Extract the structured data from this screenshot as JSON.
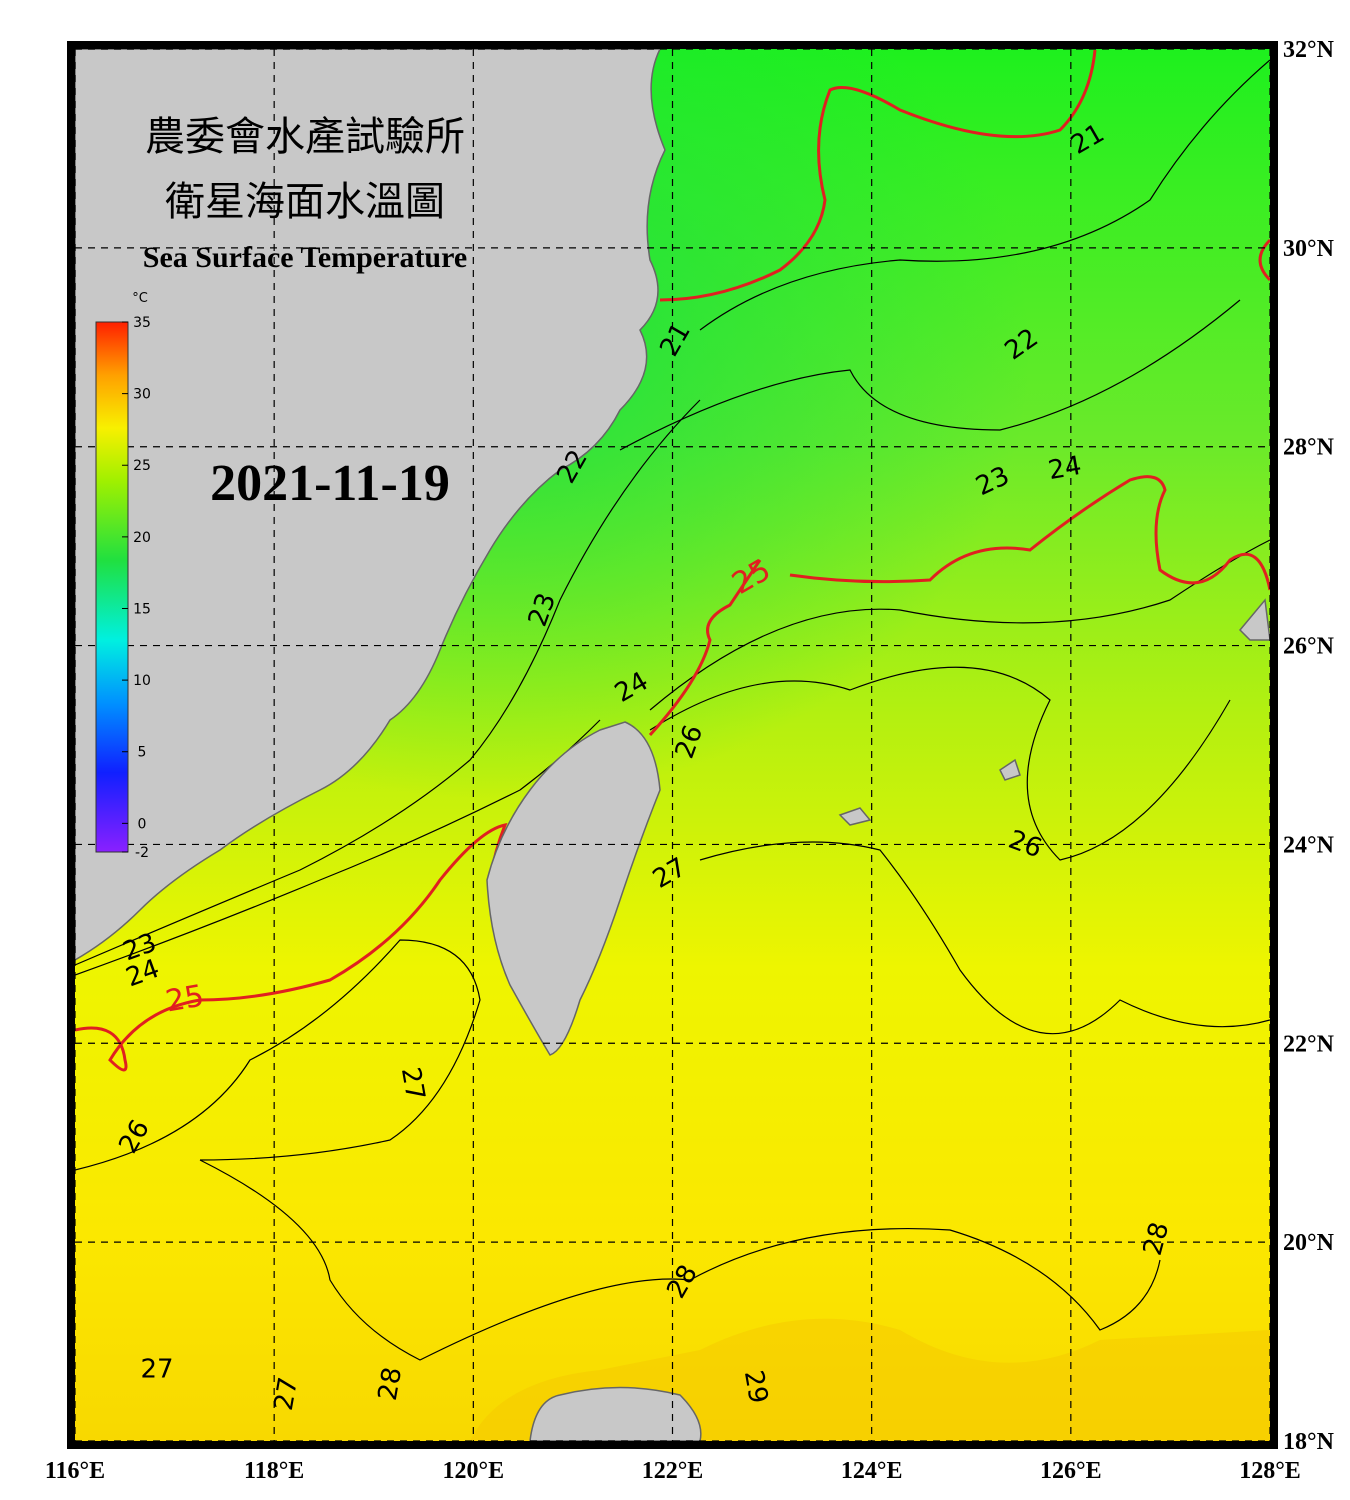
{
  "header": {
    "title_zh_1": "農委會水產試驗所",
    "title_zh_2": "衛星海面水溫圖",
    "title_en": "Sea Surface Temperature",
    "date": "2021-11-19"
  },
  "colorbar": {
    "unit": "°C",
    "lim": [
      -2,
      35
    ],
    "ticks": [
      -2,
      0,
      5,
      10,
      15,
      20,
      25,
      30,
      35
    ]
  },
  "map": {
    "xlim": [
      116,
      128
    ],
    "ylim": [
      18,
      32
    ],
    "xticks": [
      {
        "value": 116,
        "label": "116°E"
      },
      {
        "value": 118,
        "label": "118°E"
      },
      {
        "value": 120,
        "label": "120°E"
      },
      {
        "value": 122,
        "label": "122°E"
      },
      {
        "value": 124,
        "label": "124°E"
      },
      {
        "value": 126,
        "label": "126°E"
      },
      {
        "value": 128,
        "label": "128°E"
      }
    ],
    "yticks": [
      {
        "value": 18,
        "label": "18°N"
      },
      {
        "value": 20,
        "label": "20°N"
      },
      {
        "value": 22,
        "label": "22°N"
      },
      {
        "value": 24,
        "label": "24°N"
      },
      {
        "value": 26,
        "label": "26°N"
      },
      {
        "value": 28,
        "label": "28°N"
      },
      {
        "value": 30,
        "label": "30°N"
      },
      {
        "value": 32,
        "label": "32°N"
      }
    ],
    "contour_labels": [
      "21",
      "21",
      "22",
      "22",
      "23",
      "24",
      "25",
      "23",
      "24",
      "26",
      "26",
      "27",
      "23",
      "24",
      "25",
      "27",
      "26",
      "28",
      "28",
      "27",
      "27",
      "28",
      "29"
    ]
  }
}
